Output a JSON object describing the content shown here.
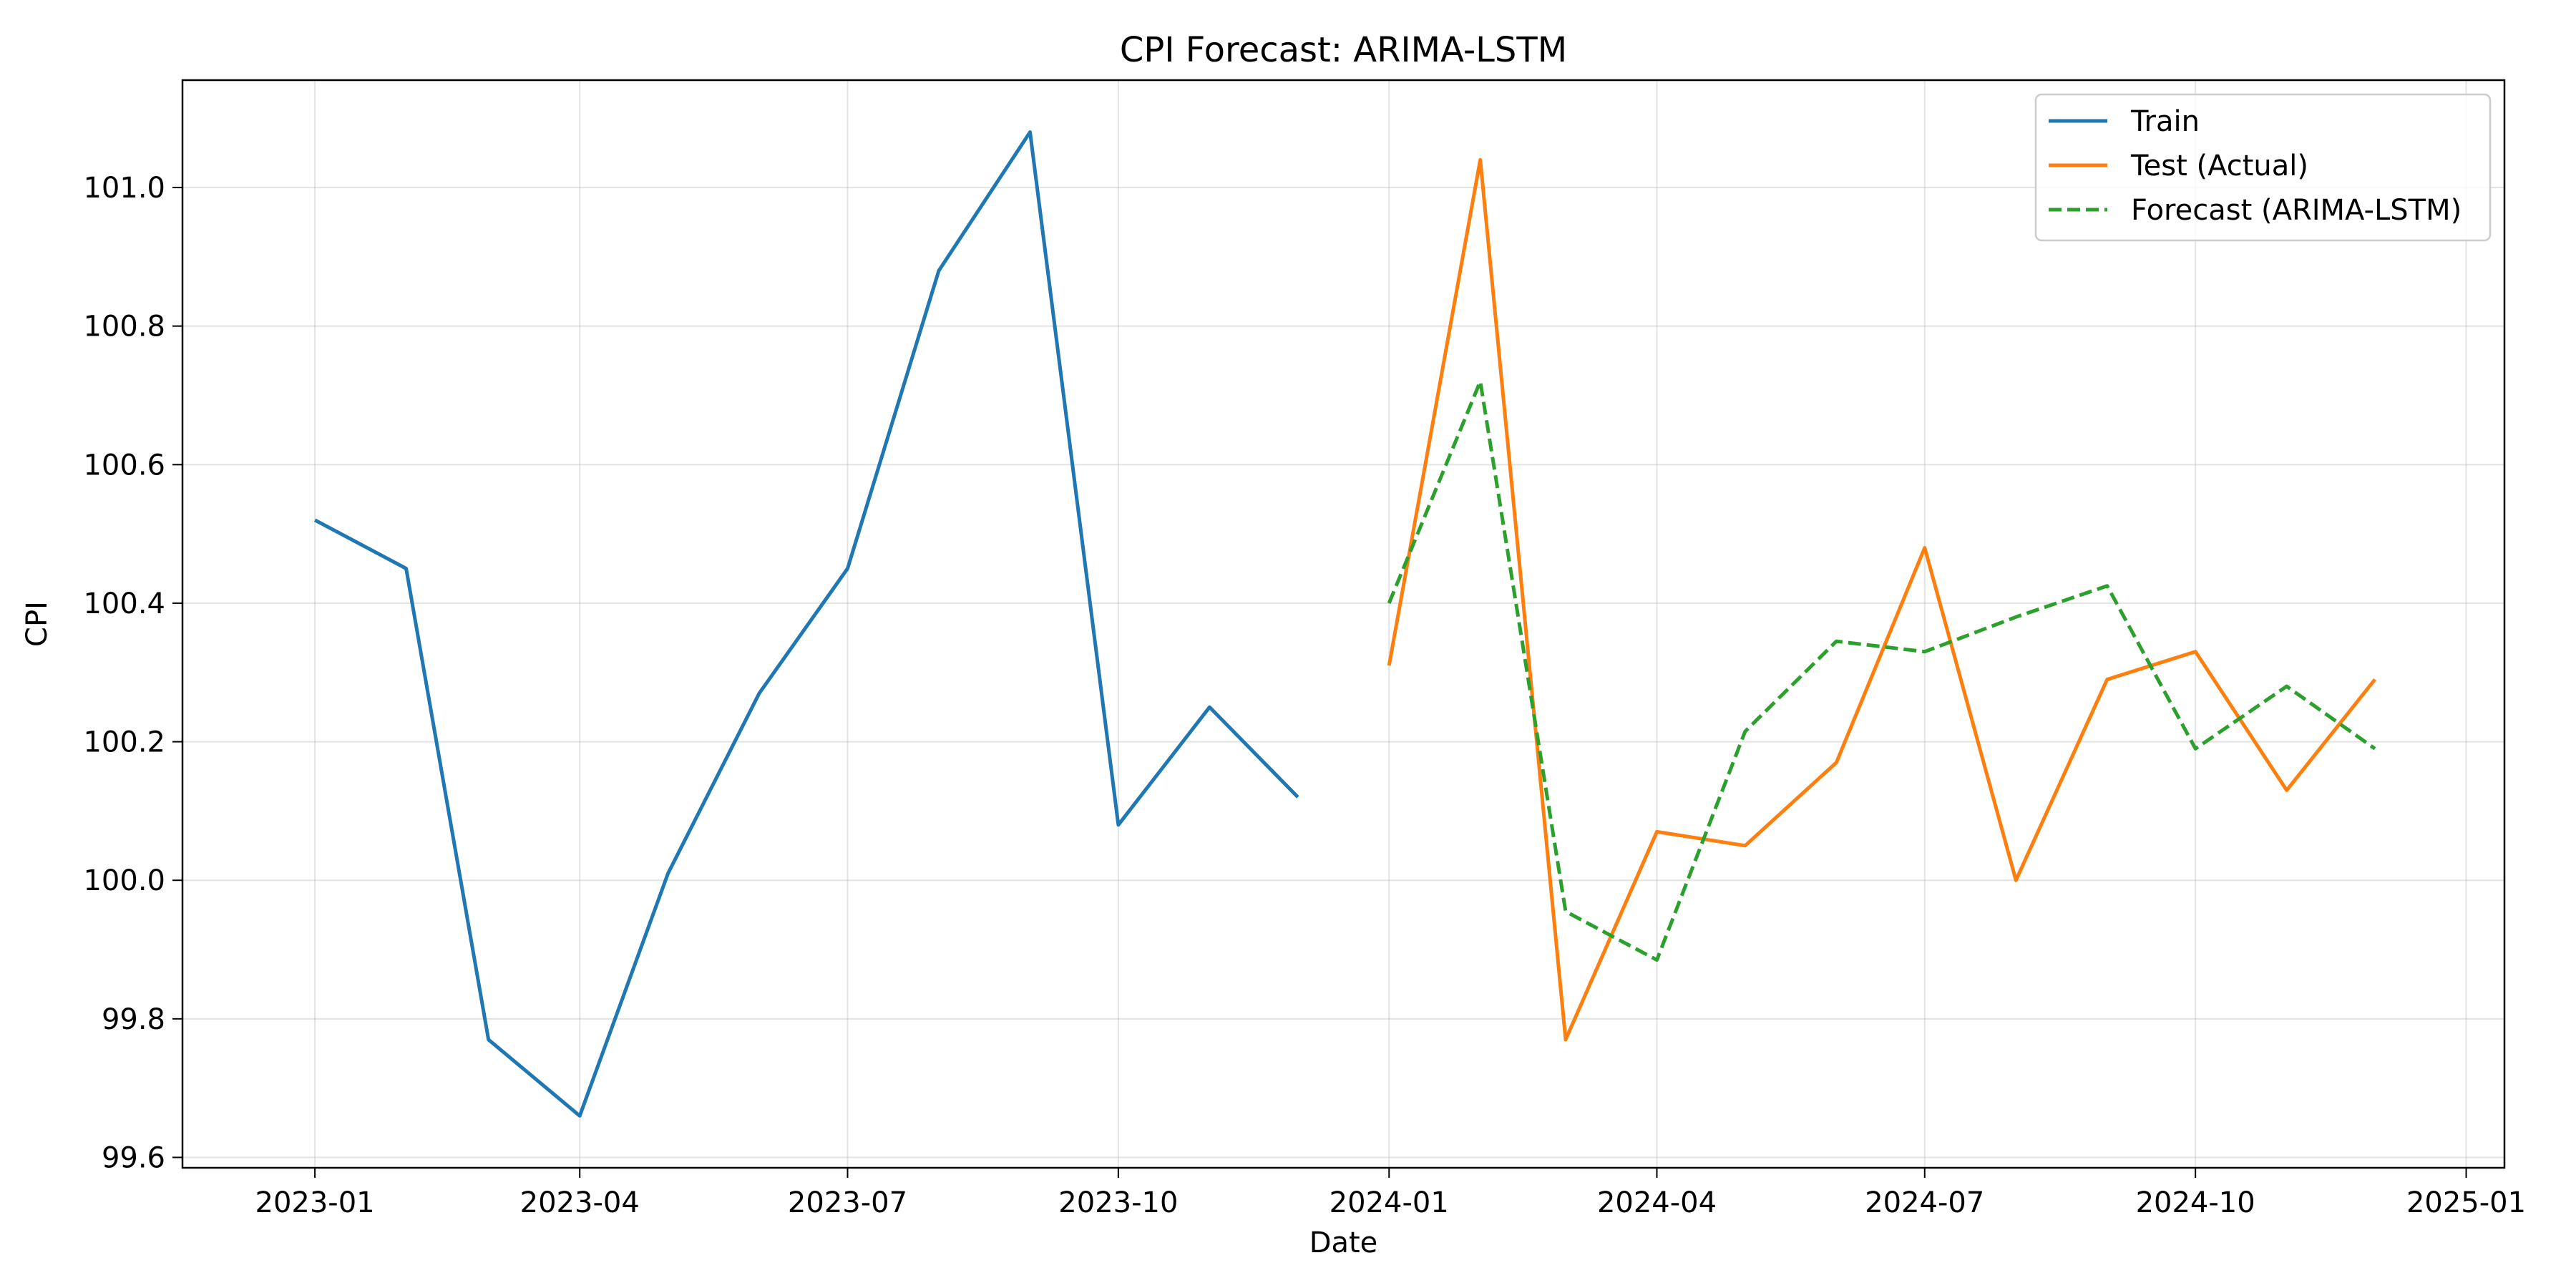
{
  "chart_data": {
    "type": "line",
    "title": "CPI Forecast: ARIMA-LSTM",
    "xlabel": "Date",
    "ylabel": "CPI",
    "xlim": [
      "2022-11-17",
      "2025-01-14"
    ],
    "ylim": [
      99.585,
      101.155
    ],
    "x_ticks": [
      "2023-01",
      "2023-04",
      "2023-07",
      "2023-10",
      "2024-01",
      "2024-04",
      "2024-07",
      "2024-10",
      "2025-01"
    ],
    "y_ticks": [
      "99.6",
      "99.8",
      "100.0",
      "100.2",
      "100.4",
      "100.6",
      "100.8",
      "101.0"
    ],
    "grid": true,
    "legend_position": "top-right",
    "series": [
      {
        "name": "Train",
        "color": "#1f77b4",
        "dash": "solid",
        "x": [
          "2023-01-01",
          "2023-02-01",
          "2023-03-01",
          "2023-04-01",
          "2023-05-01",
          "2023-06-01",
          "2023-07-01",
          "2023-08-01",
          "2023-09-01",
          "2023-10-01",
          "2023-11-01",
          "2023-12-01"
        ],
        "values": [
          100.52,
          100.45,
          99.77,
          99.66,
          100.01,
          100.27,
          100.45,
          100.88,
          101.08,
          100.08,
          100.25,
          100.12
        ]
      },
      {
        "name": "Test (Actual)",
        "color": "#ff7f0e",
        "dash": "solid",
        "x": [
          "2024-01-01",
          "2024-02-01",
          "2024-03-01",
          "2024-04-01",
          "2024-05-01",
          "2024-06-01",
          "2024-07-01",
          "2024-08-01",
          "2024-09-01",
          "2024-10-01",
          "2024-11-01",
          "2024-12-01"
        ],
        "values": [
          100.31,
          101.04,
          99.77,
          100.07,
          100.05,
          100.17,
          100.48,
          100.0,
          100.29,
          100.33,
          100.13,
          100.29
        ]
      },
      {
        "name": "Forecast (ARIMA-LSTM)",
        "color": "#2ca02c",
        "dash": "dashed",
        "x": [
          "2024-01-01",
          "2024-02-01",
          "2024-03-01",
          "2024-04-01",
          "2024-05-01",
          "2024-06-01",
          "2024-07-01",
          "2024-08-01",
          "2024-09-01",
          "2024-10-01",
          "2024-11-01",
          "2024-12-01"
        ],
        "values": [
          100.4,
          100.72,
          99.955,
          99.885,
          100.215,
          100.345,
          100.33,
          100.38,
          100.425,
          100.19,
          100.28,
          100.19
        ]
      }
    ]
  }
}
